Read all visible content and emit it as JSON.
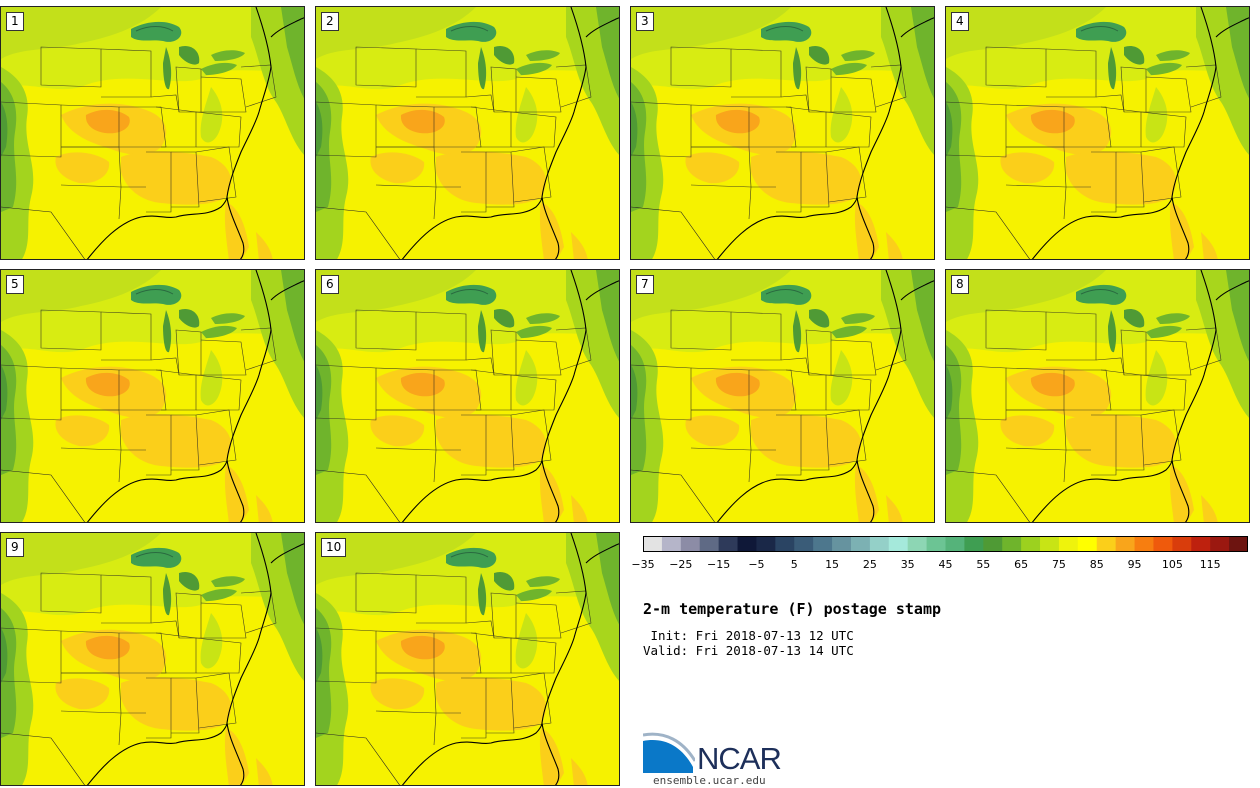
{
  "panels": [
    {
      "label": "1"
    },
    {
      "label": "2"
    },
    {
      "label": "3"
    },
    {
      "label": "4"
    },
    {
      "label": "5"
    },
    {
      "label": "6"
    },
    {
      "label": "7"
    },
    {
      "label": "8"
    },
    {
      "label": "9"
    },
    {
      "label": "10"
    }
  ],
  "colorbar": {
    "colors": [
      "#e3e3e3",
      "#b5b5c9",
      "#8c8ca6",
      "#5f6a85",
      "#2e3a5a",
      "#0f1838",
      "#1a2848",
      "#2a4463",
      "#3a5c78",
      "#4d778d",
      "#66939f",
      "#7cb1b3",
      "#94d0c8",
      "#a5e9db",
      "#8dd6b4",
      "#6cc494",
      "#55b37a",
      "#3f9e52",
      "#4f9a35",
      "#6fb42c",
      "#9cd11f",
      "#c8e415",
      "#eff30c",
      "#ffff00",
      "#fbcf1a",
      "#f9a51b",
      "#f77e10",
      "#ef5a0c",
      "#d93d0c",
      "#be210e",
      "#9b1810",
      "#6d1410"
    ],
    "ticks": [
      "−35",
      "−25",
      "−15",
      "−5",
      "5",
      "15",
      "25",
      "35",
      "45",
      "55",
      "65",
      "75",
      "85",
      "95",
      "105",
      "115"
    ]
  },
  "title": "2-m temperature (F) postage stamp",
  "init_line": " Init: Fri 2018-07-13 12 UTC",
  "valid_line": "Valid: Fri 2018-07-13 14 UTC",
  "logo": {
    "brand": "NCAR",
    "url": "ensemble.ucar.edu"
  }
}
